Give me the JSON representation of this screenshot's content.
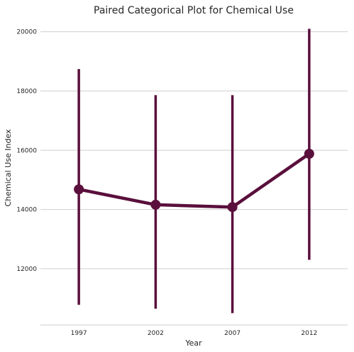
{
  "chart_data": {
    "type": "line",
    "title": "Paired Categorical Plot for Chemical Use",
    "xlabel": "Year",
    "ylabel": "Chemical Use Index",
    "categories": [
      "1997",
      "2002",
      "2007",
      "2012"
    ],
    "series": [
      {
        "values": [
          14680,
          14160,
          14080,
          15880
        ],
        "ci_low": [
          10780,
          10650,
          10500,
          12300
        ],
        "ci_high": [
          18740,
          17860,
          17860,
          20100
        ],
        "color": "#5a0f3c"
      }
    ],
    "yticks": [
      12000,
      14000,
      16000,
      18000,
      20000
    ],
    "ytick_labels": [
      "12000",
      "14000",
      "16000",
      "18000",
      "20000"
    ],
    "ylim": [
      10100,
      20400
    ],
    "grid": true,
    "grid_axis": "y"
  }
}
